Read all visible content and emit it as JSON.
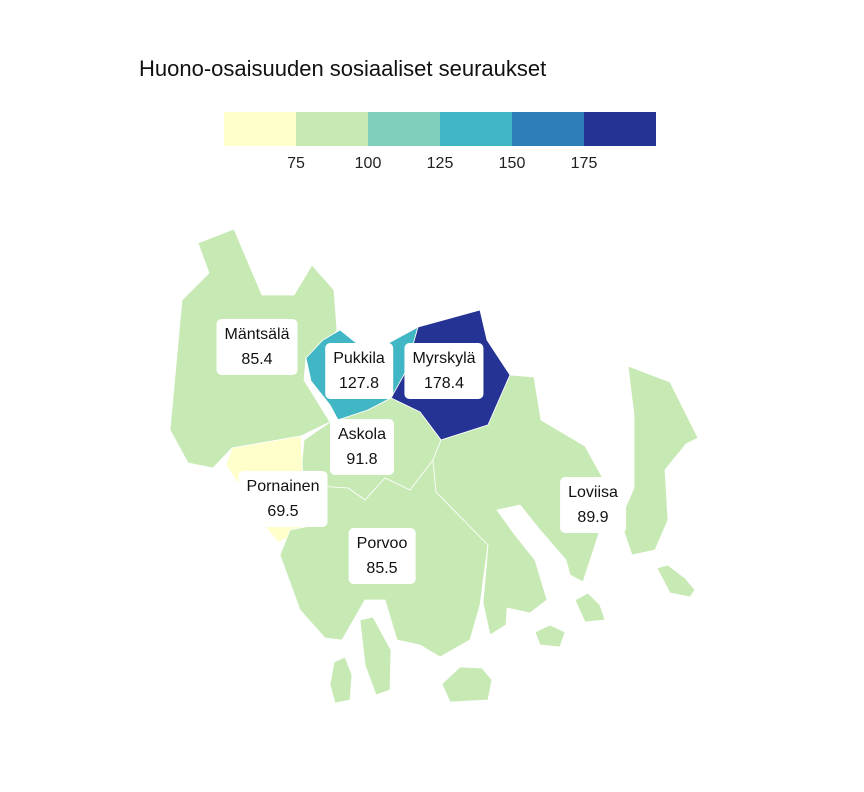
{
  "title": "Huono-osaisuuden sosiaaliset seuraukset",
  "legend": {
    "bins": [
      {
        "color": "#ffffcc",
        "tick": ""
      },
      {
        "color": "#c7e9b4",
        "tick": "75"
      },
      {
        "color": "#7fcdbb",
        "tick": "100"
      },
      {
        "color": "#41b6c4",
        "tick": "125"
      },
      {
        "color": "#2c7fb8",
        "tick": "150"
      },
      {
        "color": "#253494",
        "tick": "175"
      }
    ]
  },
  "regions": [
    {
      "name": "Mäntsälä",
      "value": "85.4",
      "color": "#c7e9b4"
    },
    {
      "name": "Pukkila",
      "value": "127.8",
      "color": "#41b6c4"
    },
    {
      "name": "Myrskylä",
      "value": "178.4",
      "color": "#253494"
    },
    {
      "name": "Askola",
      "value": "91.8",
      "color": "#c7e9b4"
    },
    {
      "name": "Pornainen",
      "value": "69.5",
      "color": "#ffffcc"
    },
    {
      "name": "Porvoo",
      "value": "85.5",
      "color": "#c7e9b4"
    },
    {
      "name": "Loviisa",
      "value": "89.9",
      "color": "#c7e9b4"
    }
  ]
}
